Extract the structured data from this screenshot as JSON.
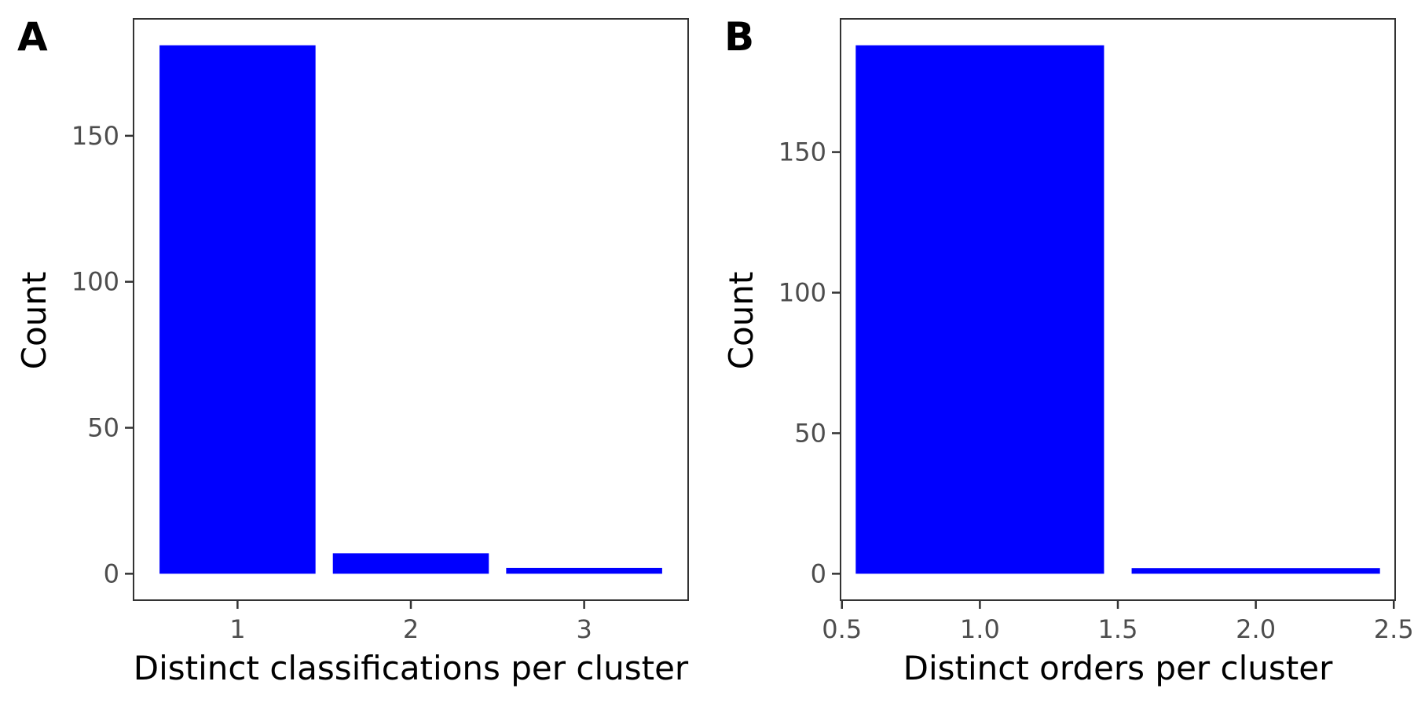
{
  "chart_data": [
    {
      "panel_tag": "A",
      "type": "bar",
      "xlabel": "Distinct classifications per cluster",
      "ylabel": "Count",
      "categories": [
        1,
        2,
        3
      ],
      "values": [
        181,
        7,
        2
      ],
      "bar_width": 0.9,
      "xlim": [
        0.4,
        3.6
      ],
      "ylim": [
        -9.05,
        190.05
      ],
      "xticks": [
        1,
        2,
        3
      ],
      "xtick_labels": [
        "1",
        "2",
        "3"
      ],
      "yticks": [
        0,
        50,
        100,
        150
      ],
      "ytick_labels": [
        "0",
        "50",
        "100",
        "150"
      ],
      "bar_color": "#0000ff",
      "grid": false
    },
    {
      "panel_tag": "B",
      "type": "bar",
      "xlabel": "Distinct orders per cluster",
      "ylabel": "Count",
      "categories": [
        1.0,
        2.0
      ],
      "values": [
        188,
        2
      ],
      "bar_width": 0.9,
      "xlim": [
        0.495,
        2.505
      ],
      "ylim": [
        -9.4,
        197.4
      ],
      "xticks": [
        0.5,
        1.0,
        1.5,
        2.0,
        2.5
      ],
      "xtick_labels": [
        "0.5",
        "1.0",
        "1.5",
        "2.0",
        "2.5"
      ],
      "yticks": [
        0,
        50,
        100,
        150
      ],
      "ytick_labels": [
        "0",
        "50",
        "100",
        "150"
      ],
      "bar_color": "#0000ff",
      "grid": false
    }
  ]
}
